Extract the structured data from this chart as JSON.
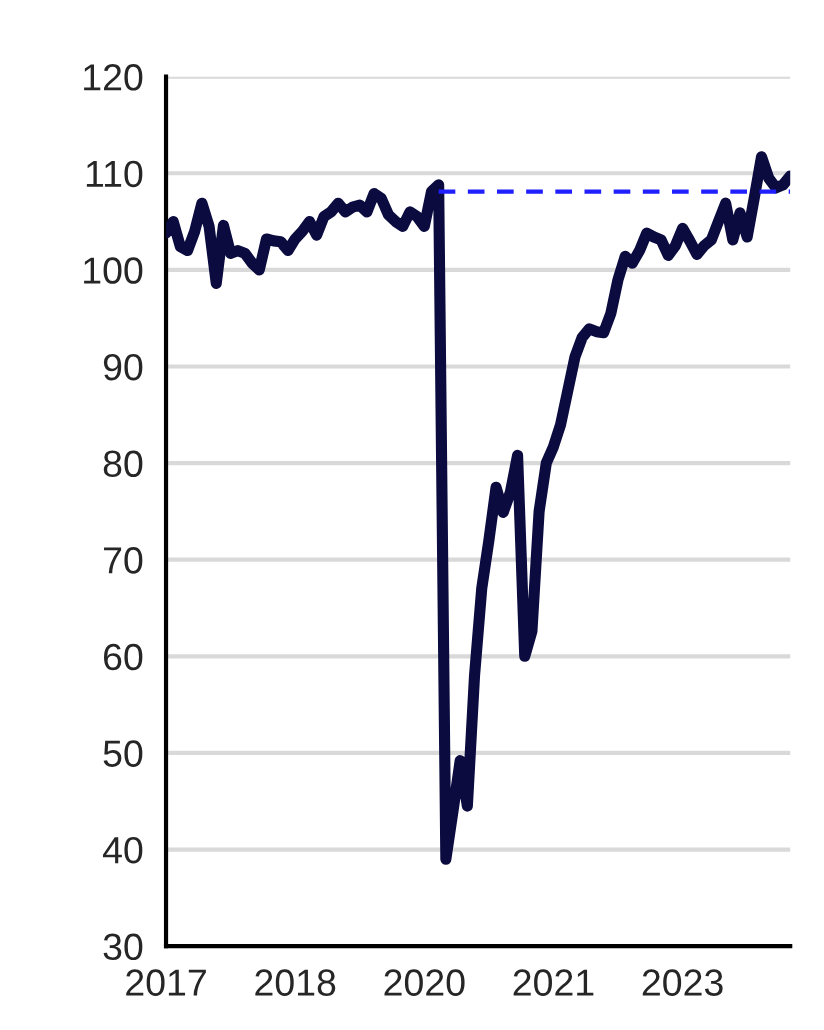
{
  "chart_data": {
    "type": "line",
    "categories": [
      "2017",
      null,
      null,
      null,
      null,
      null,
      null,
      null,
      null,
      null,
      null,
      null,
      null,
      null,
      null,
      null,
      null,
      null,
      "2018",
      null,
      null,
      null,
      null,
      null,
      null,
      null,
      null,
      null,
      null,
      null,
      null,
      null,
      null,
      null,
      null,
      null,
      "2020",
      null,
      null,
      null,
      null,
      null,
      null,
      null,
      null,
      null,
      null,
      null,
      null,
      null,
      null,
      null,
      null,
      null,
      "2021",
      null,
      null,
      null,
      null,
      null,
      null,
      null,
      null,
      null,
      null,
      null,
      null,
      null,
      null,
      null,
      null,
      null,
      "2023",
      null,
      null,
      null,
      null,
      null,
      null,
      null,
      null,
      null,
      null,
      null,
      null,
      null,
      null,
      null
    ],
    "series": [
      {
        "color": "#0b0b40",
        "line_style": "solid",
        "values": [
          103.8,
          105,
          102.4,
          102,
          104,
          106.9,
          104.5,
          98.6,
          104.6,
          101.7,
          102,
          101.7,
          100.7,
          100,
          103.2,
          103,
          102.9,
          102,
          103.2,
          104,
          105,
          103.6,
          105.5,
          106,
          106.9,
          106,
          106.5,
          106.7,
          106,
          107.9,
          107.4,
          105.7,
          105,
          104.5,
          106,
          105.5,
          104.5,
          108.1,
          108.8,
          39,
          44,
          49.2,
          44.5,
          58,
          67,
          72,
          77.5,
          74.9,
          77,
          80.8,
          60,
          62.6,
          75,
          80,
          81.7,
          84,
          87.5,
          91,
          93,
          93.9,
          93.6,
          93.5,
          95.5,
          99,
          101.4,
          100.7,
          102,
          103.8,
          103.4,
          103.1,
          101.5,
          102.5,
          104.3,
          103,
          101.6,
          102.5,
          103.1,
          105,
          106.9,
          103.1,
          105.9,
          103.4,
          107.5,
          111.7,
          109.5,
          108.5,
          108.8,
          109.7
        ]
      },
      {
        "color": "#1f1fff",
        "line_style": "dashed",
        "values": [
          null,
          null,
          null,
          null,
          null,
          null,
          null,
          null,
          null,
          null,
          null,
          null,
          null,
          null,
          null,
          null,
          null,
          null,
          null,
          null,
          null,
          null,
          null,
          null,
          null,
          null,
          null,
          null,
          null,
          null,
          null,
          null,
          null,
          null,
          null,
          null,
          null,
          null,
          108.1,
          108.1,
          108.1,
          108.1,
          108.1,
          108.1,
          108.1,
          108.1,
          108.1,
          108.1,
          108.1,
          108.1,
          108.1,
          108.1,
          108.1,
          108.1,
          108.1,
          108.1,
          108.1,
          108.1,
          108.1,
          108.1,
          108.1,
          108.1,
          108.1,
          108.1,
          108.1,
          108.1,
          108.1,
          108.1,
          108.1,
          108.1,
          108.1,
          108.1,
          108.1,
          108.1,
          108.1,
          108.1,
          108.1,
          108.1,
          108.1,
          108.1,
          108.1,
          108.1,
          108.1,
          108.1,
          108.1,
          108.1,
          108.1,
          108.1
        ]
      }
    ],
    "ylim": [
      30,
      120
    ],
    "yticks": [
      30,
      40,
      50,
      60,
      70,
      80,
      90,
      100,
      110,
      120
    ],
    "grid": "y",
    "marker": "none"
  }
}
